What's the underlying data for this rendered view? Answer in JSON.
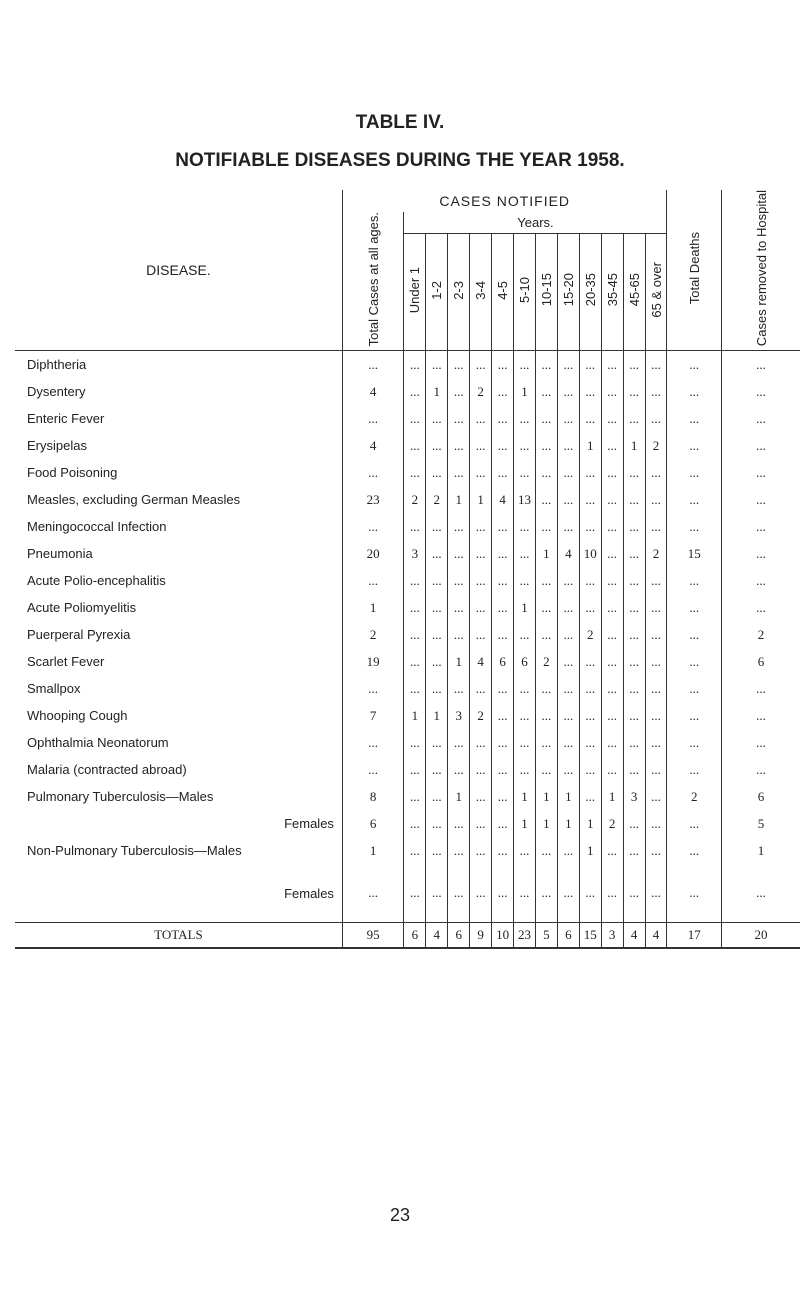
{
  "header": {
    "title": "TABLE IV.",
    "subtitle": "NOTIFIABLE DISEASES DURING THE YEAR 1958."
  },
  "table": {
    "group": "CASES NOTIFIED",
    "years": "Years.",
    "columns": [
      "DISEASE.",
      "Total Cases at all ages.",
      "Under 1",
      "1-2",
      "2-3",
      "3-4",
      "4-5",
      "5-10",
      "10-15",
      "15-20",
      "20-35",
      "35-45",
      "45-65",
      "65 & over",
      "Total Deaths",
      "Cases removed to Hospital"
    ],
    "rows": [
      [
        "Diphtheria",
        "...",
        "...",
        "...",
        "...",
        "...",
        "...",
        "...",
        "...",
        "...",
        "...",
        "...",
        "...",
        "...",
        "...",
        "..."
      ],
      [
        "Dysentery",
        4,
        "...",
        1,
        "...",
        2,
        "...",
        1,
        "...",
        "...",
        "...",
        "...",
        "...",
        "...",
        "...",
        "..."
      ],
      [
        "Enteric Fever",
        "...",
        "...",
        "...",
        "...",
        "...",
        "...",
        "...",
        "...",
        "...",
        "...",
        "...",
        "...",
        "...",
        "...",
        "..."
      ],
      [
        "Erysipelas",
        4,
        "...",
        "...",
        "...",
        "...",
        "...",
        "...",
        "...",
        "...",
        1,
        "...",
        1,
        2,
        "...",
        "..."
      ],
      [
        "Food Poisoning",
        "...",
        "...",
        "...",
        "...",
        "...",
        "...",
        "...",
        "...",
        "...",
        "...",
        "...",
        "...",
        "...",
        "...",
        "..."
      ],
      [
        "Measles, excluding German Measles",
        23,
        2,
        2,
        1,
        1,
        4,
        13,
        "...",
        "...",
        "...",
        "...",
        "...",
        "...",
        "...",
        "..."
      ],
      [
        "Meningococcal Infection",
        "...",
        "...",
        "...",
        "...",
        "...",
        "...",
        "...",
        "...",
        "...",
        "...",
        "...",
        "...",
        "...",
        "...",
        "..."
      ],
      [
        "Pneumonia",
        20,
        3,
        "...",
        "...",
        "...",
        "...",
        "...",
        1,
        4,
        10,
        "...",
        "...",
        2,
        15,
        "..."
      ],
      [
        "Acute Polio-encephalitis",
        "...",
        "...",
        "...",
        "...",
        "...",
        "...",
        "...",
        "...",
        "...",
        "...",
        "...",
        "...",
        "...",
        "...",
        "..."
      ],
      [
        "Acute Poliomyelitis",
        1,
        "...",
        "...",
        "...",
        "...",
        "...",
        1,
        "...",
        "...",
        "...",
        "...",
        "...",
        "...",
        "...",
        "..."
      ],
      [
        "Puerperal Pyrexia",
        2,
        "...",
        "...",
        "...",
        "...",
        "...",
        "...",
        "...",
        "...",
        2,
        "...",
        "...",
        "...",
        "...",
        2
      ],
      [
        "Scarlet Fever",
        19,
        "...",
        "...",
        1,
        4,
        6,
        6,
        2,
        "...",
        "...",
        "...",
        "...",
        "...",
        "...",
        6
      ],
      [
        "Smallpox",
        "...",
        "...",
        "...",
        "...",
        "...",
        "...",
        "...",
        "...",
        "...",
        "...",
        "...",
        "...",
        "...",
        "...",
        "..."
      ],
      [
        "Whooping Cough",
        7,
        1,
        1,
        3,
        2,
        "...",
        "...",
        "...",
        "...",
        "...",
        "...",
        "...",
        "...",
        "...",
        "..."
      ],
      [
        "Ophthalmia Neonatorum",
        "...",
        "...",
        "...",
        "...",
        "...",
        "...",
        "...",
        "...",
        "...",
        "...",
        "...",
        "...",
        "...",
        "...",
        "..."
      ],
      [
        "Malaria (contracted abroad)",
        "...",
        "...",
        "...",
        "...",
        "...",
        "...",
        "...",
        "...",
        "...",
        "...",
        "...",
        "...",
        "...",
        "...",
        "..."
      ],
      [
        "Pulmonary Tuberculosis—Males",
        8,
        "...",
        "...",
        1,
        "...",
        "...",
        1,
        1,
        1,
        "...",
        1,
        3,
        "...",
        2,
        6
      ],
      [
        "Females",
        6,
        "...",
        "...",
        "...",
        "...",
        "...",
        1,
        1,
        1,
        1,
        2,
        "...",
        "...",
        "...",
        5
      ],
      [
        "Non-Pulmonary Tuberculosis—Males",
        1,
        "...",
        "...",
        "...",
        "...",
        "...",
        "...",
        "...",
        "...",
        1,
        "...",
        "...",
        "...",
        "...",
        1
      ],
      [
        "Females",
        "...",
        "...",
        "...",
        "...",
        "...",
        "...",
        "...",
        "...",
        "...",
        "...",
        "...",
        "...",
        "...",
        "...",
        "..."
      ]
    ],
    "totals": [
      "TOTALS",
      95,
      6,
      4,
      6,
      9,
      10,
      23,
      5,
      6,
      15,
      3,
      4,
      4,
      17,
      20
    ]
  },
  "footer": {
    "page": "23"
  }
}
